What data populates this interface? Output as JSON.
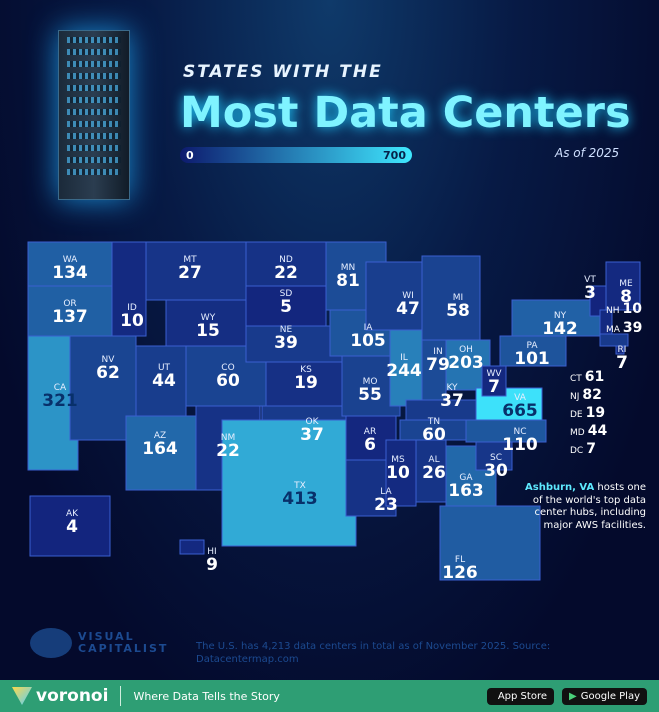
{
  "header": {
    "kicker": "STATES WITH THE",
    "title": "Most Data Centers",
    "legend_min": "0",
    "legend_max": "700",
    "as_of": "As of 2025"
  },
  "colors": {
    "low": "#12207a",
    "high": "#3fe8ff",
    "background": "#050a2e",
    "footer": "#2e9e74"
  },
  "chart_data": {
    "type": "choropleth",
    "title": "States with the Most Data Centers",
    "subtitle": "As of 2025",
    "scale": [
      0,
      700
    ],
    "states": [
      {
        "code": "WA",
        "value": 134
      },
      {
        "code": "OR",
        "value": 137
      },
      {
        "code": "CA",
        "value": 321
      },
      {
        "code": "NV",
        "value": 62
      },
      {
        "code": "ID",
        "value": 10
      },
      {
        "code": "MT",
        "value": 27
      },
      {
        "code": "WY",
        "value": 15
      },
      {
        "code": "UT",
        "value": 44
      },
      {
        "code": "CO",
        "value": 60
      },
      {
        "code": "AZ",
        "value": 164
      },
      {
        "code": "NM",
        "value": 22
      },
      {
        "code": "ND",
        "value": 22
      },
      {
        "code": "SD",
        "value": 5
      },
      {
        "code": "NE",
        "value": 39
      },
      {
        "code": "KS",
        "value": 19
      },
      {
        "code": "OK",
        "value": 37
      },
      {
        "code": "TX",
        "value": 413
      },
      {
        "code": "MN",
        "value": 81
      },
      {
        "code": "IA",
        "value": 105
      },
      {
        "code": "MO",
        "value": 55
      },
      {
        "code": "AR",
        "value": 6
      },
      {
        "code": "LA",
        "value": 23
      },
      {
        "code": "WI",
        "value": 47
      },
      {
        "code": "IL",
        "value": 244
      },
      {
        "code": "MI",
        "value": 58
      },
      {
        "code": "IN",
        "value": 79
      },
      {
        "code": "OH",
        "value": 203
      },
      {
        "code": "KY",
        "value": 37
      },
      {
        "code": "TN",
        "value": 60
      },
      {
        "code": "MS",
        "value": 10
      },
      {
        "code": "AL",
        "value": 26
      },
      {
        "code": "GA",
        "value": 163
      },
      {
        "code": "FL",
        "value": 126
      },
      {
        "code": "SC",
        "value": 30
      },
      {
        "code": "NC",
        "value": 110
      },
      {
        "code": "VA",
        "value": 665
      },
      {
        "code": "WV",
        "value": 7
      },
      {
        "code": "PA",
        "value": 101
      },
      {
        "code": "NY",
        "value": 142
      },
      {
        "code": "VT",
        "value": 3
      },
      {
        "code": "ME",
        "value": 8
      },
      {
        "code": "NH",
        "value": 10
      },
      {
        "code": "MA",
        "value": 39
      },
      {
        "code": "RI",
        "value": 7
      },
      {
        "code": "CT",
        "value": 61
      },
      {
        "code": "NJ",
        "value": 82
      },
      {
        "code": "DE",
        "value": 19
      },
      {
        "code": "MD",
        "value": 44
      },
      {
        "code": "DC",
        "value": 7
      },
      {
        "code": "AK",
        "value": 4
      },
      {
        "code": "HI",
        "value": 9
      }
    ]
  },
  "note": {
    "highlight": "Ashburn, VA",
    "text": " hosts one of the world's top data center hubs, including major AWS facilities."
  },
  "source": "The U.S. has 4,213 data centers in total as of November 2025. Source: Datacentermap.com",
  "brand": {
    "vc_line1": "VISUAL",
    "vc_line2": "CAPITALIST",
    "voronoi": "voronoi",
    "tagline": "Where Data Tells the Story",
    "app_store": "App Store",
    "google_play": "Google Play"
  }
}
